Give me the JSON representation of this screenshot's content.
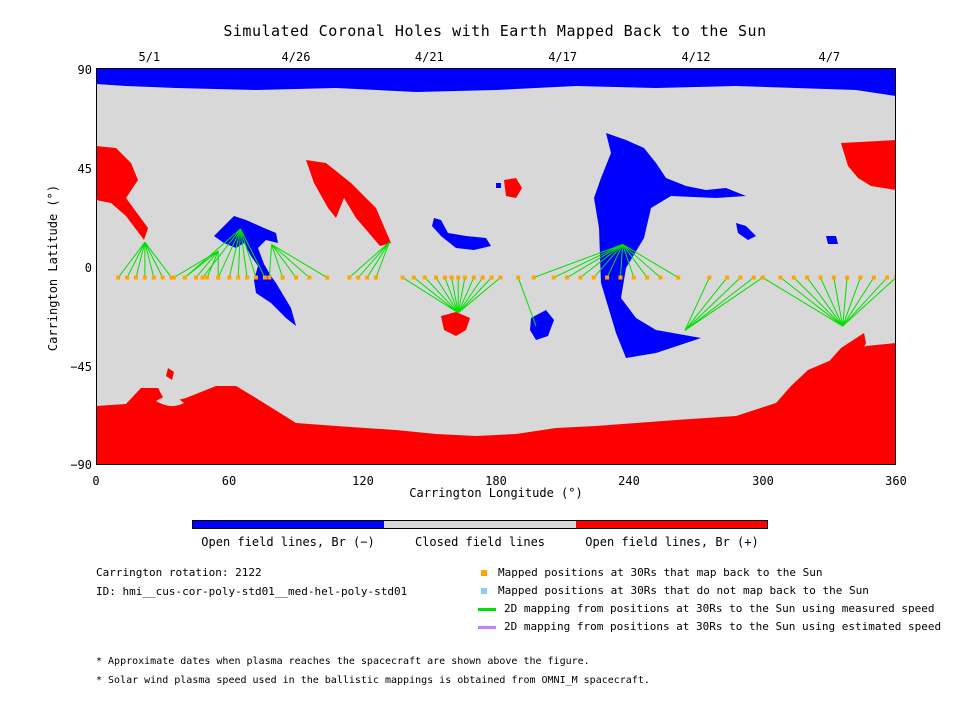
{
  "title": "Simulated Coronal Holes with Earth Mapped Back to the Sun",
  "top_dates": [
    {
      "label": "5/1",
      "lon": 24
    },
    {
      "label": "4/26",
      "lon": 90
    },
    {
      "label": "4/21",
      "lon": 150
    },
    {
      "label": "4/17",
      "lon": 210
    },
    {
      "label": "4/12",
      "lon": 270
    },
    {
      "label": "4/7",
      "lon": 330
    }
  ],
  "axes": {
    "x_label": "Carrington Longitude (°)",
    "y_label": "Carrington Latitude (°)",
    "x_range": [
      0,
      360
    ],
    "y_range": [
      -90,
      90
    ],
    "x_ticks": [
      "0",
      "60",
      "120",
      "180",
      "240",
      "300",
      "360"
    ],
    "y_ticks": [
      "90",
      "45",
      "0",
      "−45",
      "−90"
    ]
  },
  "colorbar": {
    "negative": {
      "label": "Open field lines, Br (−)",
      "color": "#0000ff"
    },
    "closed": {
      "label": "Closed field lines",
      "color": "#d8d8d8"
    },
    "positive": {
      "label": "Open field lines, Br (+)",
      "color": "#ff0000"
    }
  },
  "info": {
    "rotation": "Carrington rotation: 2122",
    "id": "ID: hmi__cus-cor-poly-std01__med-hel-poly-std01"
  },
  "legend": {
    "mapped_back": {
      "label": "Mapped positions at 30Rs that map back to the Sun",
      "color": "#ffa500"
    },
    "not_mapped": {
      "label": "Mapped positions at 30Rs that do not map back to the Sun",
      "color": "#87cefa"
    },
    "measured_speed": {
      "label": "2D mapping from positions at 30Rs to the Sun using measured speed",
      "color": "#00e000"
    },
    "estimated_speed": {
      "label": "2D mapping from positions at 30Rs to the Sun using estimated speed",
      "color": "#c080ff"
    }
  },
  "notes": [
    "* Approximate dates when plasma reaches the spacecraft are shown above the figure.",
    "* Solar wind plasma speed used in the ballistic mappings is obtained from OMNI_M spacecraft."
  ],
  "chart_data": {
    "type": "heatmap",
    "x_range": [
      0,
      360
    ],
    "y_range": [
      -90,
      90
    ],
    "mapping_clusters": [
      {
        "target": [
          22,
          11
        ],
        "sources": [
          [
            10,
            -5
          ],
          [
            14,
            -5
          ],
          [
            18,
            -5
          ],
          [
            22,
            -5
          ],
          [
            26,
            -5
          ],
          [
            30,
            -5
          ],
          [
            34,
            -5
          ]
        ]
      },
      {
        "target": [
          55,
          7
        ],
        "sources": [
          [
            35,
            -5
          ],
          [
            40,
            -5
          ],
          [
            45,
            -5
          ],
          [
            50,
            -5
          ],
          [
            55,
            -5
          ]
        ]
      },
      {
        "target": [
          65,
          17
        ],
        "sources": [
          [
            40,
            -5
          ],
          [
            48,
            -5
          ],
          [
            55,
            -5
          ],
          [
            60,
            -5
          ],
          [
            64,
            -5
          ],
          [
            68,
            -5
          ],
          [
            72,
            -5
          ],
          [
            76,
            -5
          ]
        ]
      },
      {
        "target": [
          79,
          10
        ],
        "sources": [
          [
            78,
            -5
          ],
          [
            84,
            -5
          ],
          [
            90,
            -5
          ],
          [
            96,
            -5
          ],
          [
            104,
            -5
          ]
        ]
      },
      {
        "target": [
          132,
          11
        ],
        "sources": [
          [
            114,
            -5
          ],
          [
            118,
            -5
          ],
          [
            122,
            -5
          ],
          [
            126,
            -5
          ]
        ]
      },
      {
        "target": [
          163,
          -21
        ],
        "sources": [
          [
            138,
            -5
          ],
          [
            143,
            -5
          ],
          [
            148,
            -5
          ],
          [
            153,
            -5
          ],
          [
            157,
            -5
          ],
          [
            160,
            -5
          ],
          [
            163,
            -5
          ],
          [
            166,
            -5
          ],
          [
            170,
            -5
          ],
          [
            174,
            -5
          ],
          [
            178,
            -5
          ],
          [
            182,
            -5
          ]
        ]
      },
      {
        "target": [
          198,
          -27
        ],
        "sources": [
          [
            190,
            -5
          ]
        ]
      },
      {
        "target": [
          237,
          10
        ],
        "sources": [
          [
            197,
            -5
          ],
          [
            206,
            -5
          ],
          [
            212,
            -5
          ],
          [
            218,
            -5
          ],
          [
            224,
            -5
          ],
          [
            230,
            -5
          ],
          [
            236,
            -5
          ],
          [
            242,
            -5
          ],
          [
            248,
            -5
          ],
          [
            254,
            -5
          ],
          [
            262,
            -5
          ]
        ]
      },
      {
        "target": [
          265,
          -29
        ],
        "sources": [
          [
            276,
            -5
          ],
          [
            284,
            -5
          ],
          [
            290,
            -5
          ],
          [
            296,
            -5
          ],
          [
            300,
            -5
          ]
        ]
      },
      {
        "target": [
          336,
          -27
        ],
        "sources": [
          [
            300,
            -5
          ],
          [
            308,
            -5
          ],
          [
            314,
            -5
          ],
          [
            320,
            -5
          ],
          [
            326,
            -5
          ],
          [
            332,
            -5
          ],
          [
            338,
            -5
          ],
          [
            344,
            -5
          ],
          [
            350,
            -5
          ],
          [
            356,
            -5
          ],
          [
            360,
            -5
          ]
        ]
      }
    ]
  }
}
